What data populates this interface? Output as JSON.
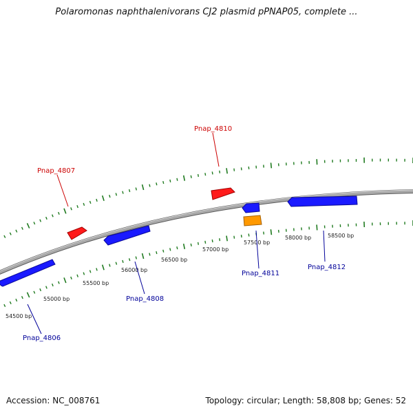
{
  "title": "Polaromonas naphthalenivorans CJ2 plasmid pPNAP05, complete ...",
  "footer": {
    "accession": "Accession: NC_008761",
    "summary": "Topology: circular; Length: 58,808 bp; Genes: 52"
  },
  "colors": {
    "backbone": "#8c8c8c",
    "tick": "#1f7a1f",
    "forward_gene": "#ff1a1a",
    "reverse_gene": "#1a1aff",
    "other_gene": "#ff9900",
    "forward_label": "#cc0000",
    "reverse_label": "#000099"
  },
  "position_labels": [
    "54500 bp",
    "55000 bp",
    "55500 bp",
    "56000 bp",
    "56500 bp",
    "57000 bp",
    "57500 bp",
    "58000 bp",
    "58500 bp"
  ],
  "genes": [
    {
      "name": "Pnap_4806",
      "color": "#1a1aff",
      "label_color": "#000099"
    },
    {
      "name": "Pnap_4807",
      "color": "#ff1a1a",
      "label_color": "#cc0000"
    },
    {
      "name": "Pnap_4808",
      "color": "#1a1aff",
      "label_color": "#000099"
    },
    {
      "name": "Pnap_4810",
      "color": "#ff1a1a",
      "label_color": "#cc0000"
    },
    {
      "name": "Pnap_4811",
      "color": "#1a1aff",
      "label_color": "#000099"
    },
    {
      "name": "Pnap_4812",
      "color": "#1a1aff",
      "label_color": "#000099"
    },
    {
      "name": "",
      "color": "#ff9900",
      "label_color": "#000000"
    }
  ]
}
